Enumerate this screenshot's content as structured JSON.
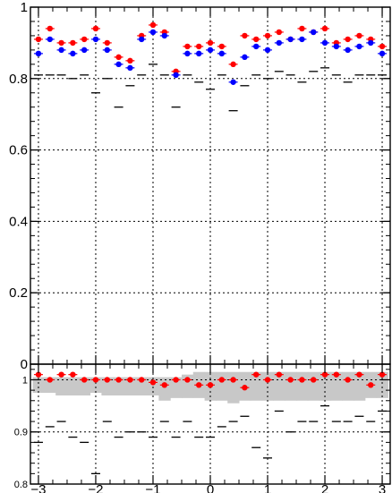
{
  "colors": {
    "red": "#ff0000",
    "blue": "#0000ff",
    "black": "#000000",
    "band": "#c8c8c8",
    "grid": "#000000"
  },
  "chart_data": [
    {
      "type": "scatter",
      "title": "",
      "xlabel": "",
      "ylabel": "",
      "xlim": [
        -3.14,
        3.14
      ],
      "ylim": [
        0,
        1.0
      ],
      "grid": true,
      "yticks": [
        0,
        0.2,
        0.4,
        0.6,
        0.8,
        1
      ],
      "ytick_labels": [
        "0",
        "0.2",
        "0.4",
        "0.6",
        "0.8",
        "1"
      ],
      "x": [
        -3.0,
        -2.8,
        -2.6,
        -2.4,
        -2.2,
        -2.0,
        -1.8,
        -1.6,
        -1.4,
        -1.2,
        -1.0,
        -0.8,
        -0.6,
        -0.4,
        -0.2,
        0.0,
        0.2,
        0.4,
        0.6,
        0.8,
        1.0,
        1.2,
        1.4,
        1.6,
        1.8,
        2.0,
        2.2,
        2.4,
        2.6,
        2.8,
        3.0
      ],
      "series": [
        {
          "color": "red",
          "marker": "circle",
          "values": [
            0.91,
            0.94,
            0.9,
            0.9,
            0.91,
            0.94,
            0.9,
            0.86,
            0.85,
            0.92,
            0.95,
            0.93,
            0.82,
            0.89,
            0.89,
            0.9,
            0.89,
            0.84,
            0.92,
            0.91,
            0.92,
            0.93,
            0.91,
            0.94,
            0.93,
            0.94,
            0.9,
            0.91,
            0.92,
            0.91,
            0.89
          ],
          "err": [
            0.015,
            0.015,
            0.015,
            0.015,
            0.015,
            0.015,
            0.015,
            0.015,
            0.015,
            0.015,
            0.015,
            0.015,
            0.015,
            0.015,
            0.015,
            0.015,
            0.015,
            0.015,
            0.015,
            0.015,
            0.015,
            0.015,
            0.015,
            0.015,
            0.015,
            0.015,
            0.015,
            0.015,
            0.015,
            0.015,
            0.015
          ]
        },
        {
          "color": "blue",
          "marker": "circle",
          "values": [
            0.87,
            0.91,
            0.88,
            0.87,
            0.88,
            0.91,
            0.88,
            0.84,
            0.83,
            0.91,
            0.93,
            0.92,
            0.81,
            0.87,
            0.87,
            0.88,
            0.87,
            0.79,
            0.86,
            0.89,
            0.88,
            0.9,
            0.91,
            0.91,
            0.93,
            0.9,
            0.89,
            0.88,
            0.89,
            0.9,
            0.87
          ],
          "err": [
            0.015,
            0.015,
            0.015,
            0.015,
            0.015,
            0.015,
            0.015,
            0.015,
            0.015,
            0.015,
            0.015,
            0.015,
            0.015,
            0.015,
            0.015,
            0.015,
            0.015,
            0.015,
            0.015,
            0.015,
            0.015,
            0.015,
            0.015,
            0.015,
            0.015,
            0.015,
            0.015,
            0.015,
            0.015,
            0.015,
            0.015
          ]
        },
        {
          "color": "black",
          "marker": "cross",
          "values": [
            0.81,
            0.81,
            0.81,
            0.8,
            0.81,
            0.76,
            0.8,
            0.72,
            0.78,
            0.81,
            0.84,
            0.81,
            0.72,
            0.81,
            0.79,
            0.77,
            0.81,
            0.71,
            0.78,
            0.81,
            0.8,
            0.82,
            0.81,
            0.79,
            0.82,
            0.83,
            0.81,
            0.79,
            0.81,
            0.81,
            0.81
          ],
          "err": [
            0.025,
            0.025,
            0.025,
            0.025,
            0.025,
            0.025,
            0.025,
            0.025,
            0.025,
            0.025,
            0.025,
            0.025,
            0.025,
            0.025,
            0.025,
            0.025,
            0.025,
            0.025,
            0.025,
            0.025,
            0.025,
            0.025,
            0.025,
            0.025,
            0.025,
            0.025,
            0.025,
            0.025,
            0.025,
            0.025,
            0.025
          ]
        }
      ]
    },
    {
      "type": "scatter",
      "title": "",
      "xlabel": "",
      "ylabel": "",
      "xlim": [
        -3.14,
        3.14
      ],
      "ylim": [
        0.8,
        1.03
      ],
      "grid": true,
      "xticks": [
        -3,
        -2,
        -1,
        0,
        1,
        2,
        3
      ],
      "xtick_labels": [
        "−3",
        "−2",
        "−1",
        "0",
        "1",
        "2",
        "3"
      ],
      "yticks": [
        0.8,
        0.9,
        1
      ],
      "ytick_labels": [
        "0.8",
        "0.9",
        "1"
      ],
      "x": [
        -3.0,
        -2.8,
        -2.6,
        -2.4,
        -2.2,
        -2.0,
        -1.8,
        -1.6,
        -1.4,
        -1.2,
        -1.0,
        -0.8,
        -0.6,
        -0.4,
        -0.2,
        0.0,
        0.2,
        0.4,
        0.6,
        0.8,
        1.0,
        1.2,
        1.4,
        1.6,
        1.8,
        2.0,
        2.2,
        2.4,
        2.6,
        2.8,
        3.0
      ],
      "band": {
        "color": "band",
        "upper": [
          1.005,
          1.005,
          1.005,
          1.005,
          1.005,
          1.005,
          1.005,
          1.005,
          1.005,
          1.005,
          1.005,
          1.005,
          1.005,
          1.01,
          1.015,
          1.015,
          1.015,
          1.015,
          1.015,
          1.015,
          1.015,
          1.015,
          1.015,
          1.015,
          1.015,
          1.015,
          1.015,
          1.015,
          1.015,
          1.015,
          1.015
        ],
        "lower": [
          0.975,
          0.975,
          0.97,
          0.97,
          0.97,
          0.975,
          0.97,
          0.97,
          0.97,
          0.97,
          0.97,
          0.96,
          0.965,
          0.965,
          0.965,
          0.96,
          0.96,
          0.955,
          0.96,
          0.96,
          0.96,
          0.96,
          0.96,
          0.96,
          0.96,
          0.96,
          0.96,
          0.96,
          0.96,
          0.965,
          0.965
        ]
      },
      "series": [
        {
          "color": "red",
          "marker": "circle",
          "values": [
            1.01,
            1.0,
            1.01,
            1.01,
            1.0,
            1.0,
            1.0,
            1.0,
            1.0,
            1.0,
            0.995,
            0.99,
            1.0,
            1.0,
            0.99,
            0.99,
            1.0,
            1.0,
            0.985,
            1.01,
            1.0,
            1.01,
            1.0,
            1.0,
            1.0,
            1.01,
            1.01,
            1.0,
            1.01,
            0.99,
            1.01
          ],
          "err": [
            0.012,
            0.012,
            0.012,
            0.012,
            0.012,
            0.012,
            0.012,
            0.012,
            0.012,
            0.012,
            0.012,
            0.012,
            0.012,
            0.012,
            0.012,
            0.012,
            0.012,
            0.012,
            0.012,
            0.012,
            0.012,
            0.012,
            0.012,
            0.012,
            0.012,
            0.012,
            0.012,
            0.012,
            0.012,
            0.012,
            0.012
          ]
        },
        {
          "color": "black",
          "marker": "cross",
          "values": [
            0.88,
            0.91,
            0.92,
            0.89,
            0.88,
            0.82,
            0.92,
            0.89,
            0.9,
            0.9,
            0.89,
            0.92,
            0.89,
            0.92,
            0.89,
            0.89,
            0.91,
            0.92,
            0.93,
            0.87,
            0.85,
            0.94,
            0.9,
            0.92,
            0.92,
            0.95,
            0.92,
            0.92,
            0.93,
            0.92,
            0.94
          ],
          "err": [
            0.025,
            0.025,
            0.025,
            0.025,
            0.025,
            0.025,
            0.025,
            0.025,
            0.025,
            0.025,
            0.025,
            0.025,
            0.025,
            0.025,
            0.025,
            0.025,
            0.025,
            0.025,
            0.025,
            0.025,
            0.025,
            0.025,
            0.025,
            0.025,
            0.025,
            0.025,
            0.025,
            0.025,
            0.025,
            0.025,
            0.025
          ]
        }
      ]
    }
  ]
}
